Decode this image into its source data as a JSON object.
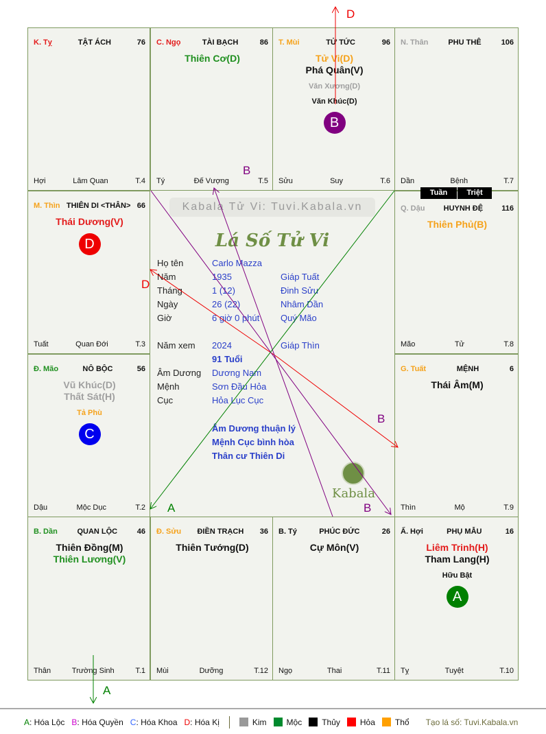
{
  "palaces": [
    {
      "can_chi": "K. Tỵ",
      "cc_color": "#e31b1b",
      "name": "TẬT ÁCH",
      "number": "76",
      "stars": [],
      "minor": [],
      "branch": "Hợi",
      "stage": "Lâm Quan",
      "t": "T.4"
    },
    {
      "can_chi": "C. Ngọ",
      "cc_color": "#e31b1b",
      "name": "TÀI BẠCH",
      "number": "86",
      "stars": [
        {
          "text": "Thiên Cơ(D)",
          "color": "#1f8f1f"
        }
      ],
      "minor": [],
      "branch": "Tý",
      "stage": "Đế Vượng",
      "t": "T.5"
    },
    {
      "can_chi": "T. Mùi",
      "cc_color": "#f5a21b",
      "name": "TỬ TỨC",
      "number": "96",
      "stars": [
        {
          "text": "Tử Vi(D)",
          "color": "#f5a21b"
        },
        {
          "text": "Phá Quân(V)",
          "color": "#111111"
        }
      ],
      "minor": [
        {
          "text": "Văn Xương(D)",
          "color": "#a0a0a0"
        },
        {
          "text": "Văn Khúc(D)",
          "color": "#111111"
        }
      ],
      "badge": {
        "letter": "B",
        "color": "#800080"
      },
      "branch": "Sửu",
      "stage": "Suy",
      "t": "T.6"
    },
    {
      "can_chi": "N. Thân",
      "cc_color": "#a0a0a0",
      "name": "PHU THÊ",
      "number": "106",
      "stars": [],
      "minor": [],
      "branch": "Dần",
      "stage": "Bệnh",
      "t": "T.7"
    },
    {
      "can_chi": "M. Thìn",
      "cc_color": "#f5a21b",
      "name": "THIÊN DI <THÂN>",
      "number": "66",
      "stars": [
        {
          "text": "Thái Dương(V)",
          "color": "#e31b1b"
        }
      ],
      "minor": [],
      "badge": {
        "letter": "D",
        "color": "#ee0000"
      },
      "branch": "Tuất",
      "stage": "Quan Đới",
      "t": "T.3"
    },
    {
      "can_chi": "Q. Dậu",
      "cc_color": "#a0a0a0",
      "name": "HUYNH ĐỆ",
      "number": "116",
      "stars": [
        {
          "text": "Thiên Phủ(B)",
          "color": "#f5a21b"
        }
      ],
      "minor": [],
      "branch": "Mão",
      "stage": "Tử",
      "t": "T.8"
    },
    {
      "can_chi": "Đ. Mão",
      "cc_color": "#1f8f1f",
      "name": "NÔ BỘC",
      "number": "56",
      "stars": [
        {
          "text": "Vũ Khúc(D)",
          "color": "#a0a0a0"
        },
        {
          "text": "Thất Sát(H)",
          "color": "#a0a0a0"
        }
      ],
      "minor": [
        {
          "text": "Tả Phù",
          "color": "#f5a21b"
        }
      ],
      "badge": {
        "letter": "C",
        "color": "#0000ee"
      },
      "branch": "Dậu",
      "stage": "Mộc Dục",
      "t": "T.2"
    },
    {
      "can_chi": "G. Tuất",
      "cc_color": "#f5a21b",
      "name": "MỆNH",
      "number": "6",
      "stars": [
        {
          "text": "Thái Âm(M)",
          "color": "#111111"
        }
      ],
      "minor": [],
      "branch": "Thìn",
      "stage": "Mộ",
      "t": "T.9"
    },
    {
      "can_chi": "B. Dần",
      "cc_color": "#1f8f1f",
      "name": "QUAN LỘC",
      "number": "46",
      "stars": [
        {
          "text": "Thiên Đồng(M)",
          "color": "#111111"
        },
        {
          "text": "Thiên Lương(V)",
          "color": "#1f8f1f"
        }
      ],
      "minor": [],
      "branch": "Thân",
      "stage": "Trường Sinh",
      "t": "T.1"
    },
    {
      "can_chi": "Đ. Sửu",
      "cc_color": "#f5a21b",
      "name": "ĐIỀN TRẠCH",
      "number": "36",
      "stars": [
        {
          "text": "Thiên Tướng(D)",
          "color": "#111111"
        }
      ],
      "minor": [],
      "branch": "Mùi",
      "stage": "Dưỡng",
      "t": "T.12"
    },
    {
      "can_chi": "B. Tý",
      "cc_color": "#111111",
      "name": "PHÚC ĐỨC",
      "number": "26",
      "stars": [
        {
          "text": "Cự Môn(V)",
          "color": "#111111"
        }
      ],
      "minor": [],
      "branch": "Ngọ",
      "stage": "Thai",
      "t": "T.11"
    },
    {
      "can_chi": "Ấ. Hợi",
      "cc_color": "#111111",
      "name": "PHỤ MẪU",
      "number": "16",
      "stars": [
        {
          "text": "Liêm Trinh(H)",
          "color": "#e31b1b"
        },
        {
          "text": "Tham Lang(H)",
          "color": "#111111"
        }
      ],
      "minor": [
        {
          "text": "Hữu Bật",
          "color": "#111111"
        }
      ],
      "badge": {
        "letter": "A",
        "color": "#008000"
      },
      "branch": "Tỵ",
      "stage": "Tuyệt",
      "t": "T.10"
    }
  ],
  "tuan": "Tuần",
  "triet": "Triệt",
  "center": {
    "watermark": "Kabala Tử Vi: Tuvi.Kabala.vn",
    "title": "Lá Số Tử Vi",
    "rows": [
      {
        "label": "Họ tên",
        "v1": "Carlo Mazza",
        "v2": ""
      },
      {
        "label": "Năm",
        "v1": "1935",
        "v2": "Giáp Tuất"
      },
      {
        "label": "Tháng",
        "v1": "1  (12)",
        "v2": "Đinh Sửu"
      },
      {
        "label": "Ngày",
        "v1": "26  (22)",
        "v2": "Nhâm Dần"
      },
      {
        "label": "Giờ",
        "v1": "6 giờ 0 phút",
        "v2": "Quý Mão"
      },
      {
        "label": "Năm xem",
        "v1": "2024",
        "v2": "Giáp Thìn"
      },
      {
        "label": "",
        "v1": "91 Tuổi",
        "v2": ""
      },
      {
        "label": "Âm Dương",
        "v1": "Dương Nam",
        "v2": ""
      },
      {
        "label": "Mệnh",
        "v1": "Sơn Đầu Hỏa",
        "v2": ""
      },
      {
        "label": "Cục",
        "v1": "Hỏa Lục Cục",
        "v2": ""
      }
    ],
    "notes": [
      "Âm Dương thuận lý",
      "Mệnh Cục bình hòa",
      "Thân cư Thiên Di"
    ],
    "logo": "Kabala"
  },
  "arrows": {
    "a": "A",
    "b": "B",
    "d": "D",
    "colors": {
      "A": "#008000",
      "B": "#800080",
      "D": "#ee0000"
    }
  },
  "legend": {
    "hoa": [
      {
        "key": "A",
        "text": ": Hóa Lộc",
        "color": "#008000"
      },
      {
        "key": "B",
        "text": ": Hóa Quyền",
        "color": "#cc00cc"
      },
      {
        "key": "C",
        "text": ": Hóa Khoa",
        "color": "#3366ff"
      },
      {
        "key": "D",
        "text": ": Hóa Kị",
        "color": "#ee0000"
      }
    ],
    "elements": [
      {
        "text": "Kim",
        "color": "#999999"
      },
      {
        "text": "Mộc",
        "color": "#008a2e"
      },
      {
        "text": "Thủy",
        "color": "#000000"
      },
      {
        "text": "Hỏa",
        "color": "#ff0000"
      },
      {
        "text": "Thổ",
        "color": "#ffa000"
      }
    ],
    "credit": "Tạo lá số: Tuvi.Kabala.vn"
  }
}
